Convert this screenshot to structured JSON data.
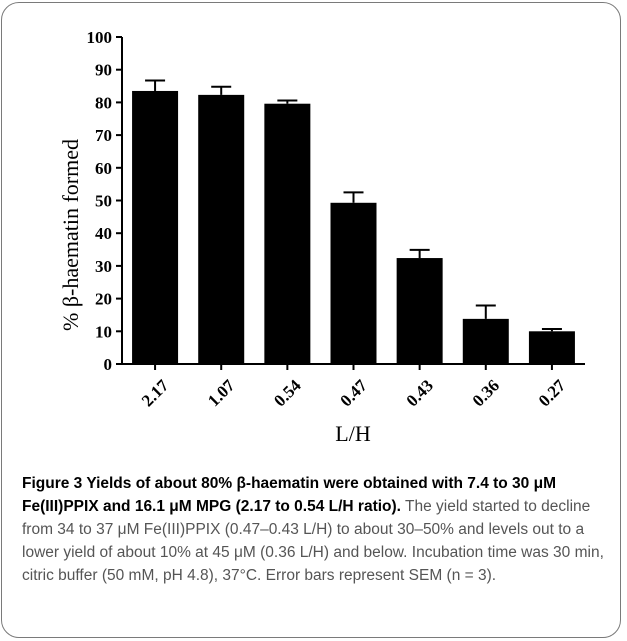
{
  "chart_data": {
    "type": "bar",
    "categories": [
      "2.17",
      "1.07",
      "0.54",
      "0.47",
      "0.43",
      "0.36",
      "0.27"
    ],
    "series": [
      {
        "values": [
          83.5,
          82.3,
          79.6,
          49.3,
          32.4,
          13.8,
          10.0
        ],
        "errors": [
          3.2,
          2.5,
          1.0,
          3.2,
          2.5,
          4.1,
          0.7
        ]
      }
    ],
    "ylabel": "% β-haematin formed",
    "xlabel": "L/H",
    "ylim": [
      0,
      100
    ],
    "yticks": [
      0,
      10,
      20,
      30,
      40,
      50,
      60,
      70,
      80,
      90,
      100
    ],
    "bar_color": "#000000",
    "grid": false,
    "legend": "none"
  },
  "caption": {
    "head": "Figure 3 Yields of about 80% β-haematin were obtained with 7.4 to 30 μM Fe(III)PPIX and 16.1 μM MPG (2.17 to 0.54 L/H ratio).",
    "body": " The yield started to decline from 34 to 37 μM Fe(III)PPIX (0.47–0.43 L/H) to about 30–50% and levels out to a lower yield of about 10% at 45 μM (0.36 L/H) and below. Incubation time was 30 min, citric buffer (50 mM, pH 4.8), 37°C. Error bars represent SEM (n = 3)."
  }
}
